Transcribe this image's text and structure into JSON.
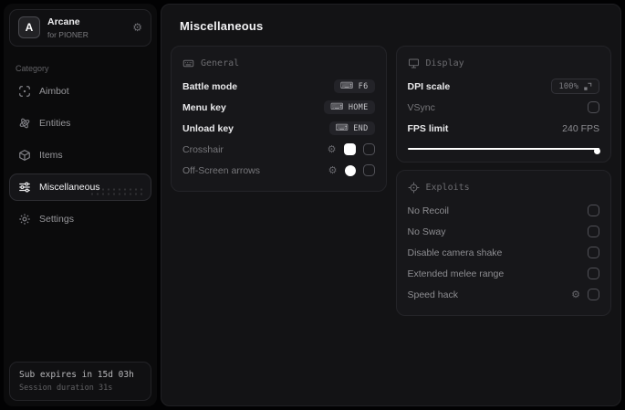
{
  "app": {
    "name": "Arcane",
    "subtitle": "for PIONER",
    "logo_letter": "A"
  },
  "colors": {
    "accent": "#ffffff",
    "panel_bg": "#131315",
    "card_bg": "#17171a"
  },
  "sidebar": {
    "category_label": "Category",
    "items": [
      {
        "label": "Aimbot",
        "icon": "scan-icon",
        "active": false
      },
      {
        "label": "Entities",
        "icon": "atom-icon",
        "active": false
      },
      {
        "label": "Items",
        "icon": "package-icon",
        "active": false
      },
      {
        "label": "Miscellaneous",
        "icon": "sliders-icon",
        "active": true
      },
      {
        "label": "Settings",
        "icon": "gear-icon",
        "active": false
      }
    ],
    "footer": {
      "sub_expires": "Sub expires in 15d 03h",
      "session_duration": "Session duration 31s"
    }
  },
  "main": {
    "title": "Miscellaneous",
    "general": {
      "header": "General",
      "icon": "keyboard-icon",
      "rows": [
        {
          "label": "Battle mode",
          "keybind": "F6"
        },
        {
          "label": "Menu key",
          "keybind": "HOME"
        },
        {
          "label": "Unload key",
          "keybind": "END"
        },
        {
          "label": "Crosshair",
          "swatch_color": "#ffffff",
          "swatch_shape": "square",
          "checked": false
        },
        {
          "label": "Off-Screen arrows",
          "swatch_color": "#ffffff",
          "swatch_shape": "circle",
          "checked": false
        }
      ],
      "keyboard_glyph": "⌨"
    },
    "display": {
      "header": "Display",
      "icon": "monitor-icon",
      "dpi_scale": {
        "label": "DPI scale",
        "value": "100%"
      },
      "vsync": {
        "label": "VSync",
        "checked": false
      },
      "fps_limit": {
        "label": "FPS limit",
        "value": "240 FPS",
        "slider_percent": 100
      }
    },
    "exploits": {
      "header": "Exploits",
      "icon": "target-icon",
      "rows": [
        {
          "label": "No Recoil",
          "checked": false
        },
        {
          "label": "No Sway",
          "checked": false
        },
        {
          "label": "Disable camera shake",
          "checked": false
        },
        {
          "label": "Extended melee range",
          "checked": false
        },
        {
          "label": "Speed hack",
          "checked": false,
          "has_settings": true
        }
      ]
    },
    "gear_glyph": "⚙"
  }
}
